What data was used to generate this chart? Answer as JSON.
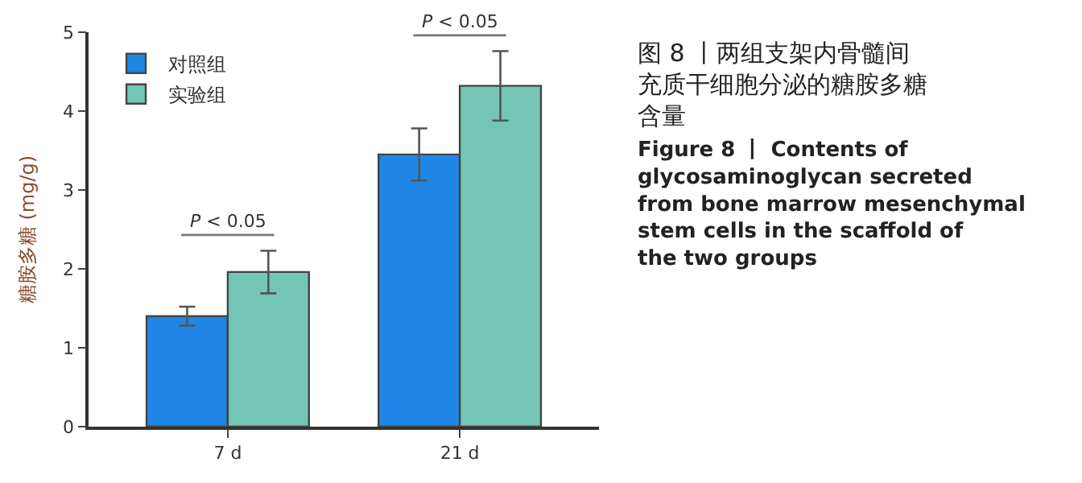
{
  "chart_data": {
    "type": "bar",
    "title": "图 8 丨两组支架内骨髓间充质干细胞分泌的糖胺多糖含量",
    "subtitle": "Figure 8 丨 Contents of glycosaminoglycan secreted from bone marrow mesenchymal stem cells in the scaffold of the two groups",
    "ylabel": "糖胺多糖 (mg/g)",
    "categories": [
      "7 d",
      "21 d"
    ],
    "series": [
      {
        "name": "对照组",
        "color": "#1f86e6",
        "values": [
          1.4,
          3.45
        ],
        "errors": [
          0.12,
          0.33
        ]
      },
      {
        "name": "实验组",
        "color": "#73c6b3",
        "values": [
          1.96,
          4.32
        ],
        "errors": [
          0.27,
          0.44
        ]
      }
    ],
    "ylim": [
      0,
      5
    ],
    "yticks": [
      0,
      1,
      2,
      3,
      4,
      5
    ],
    "legend": "top left",
    "annotations": [
      "P < 0.05",
      "P < 0.05"
    ]
  }
}
